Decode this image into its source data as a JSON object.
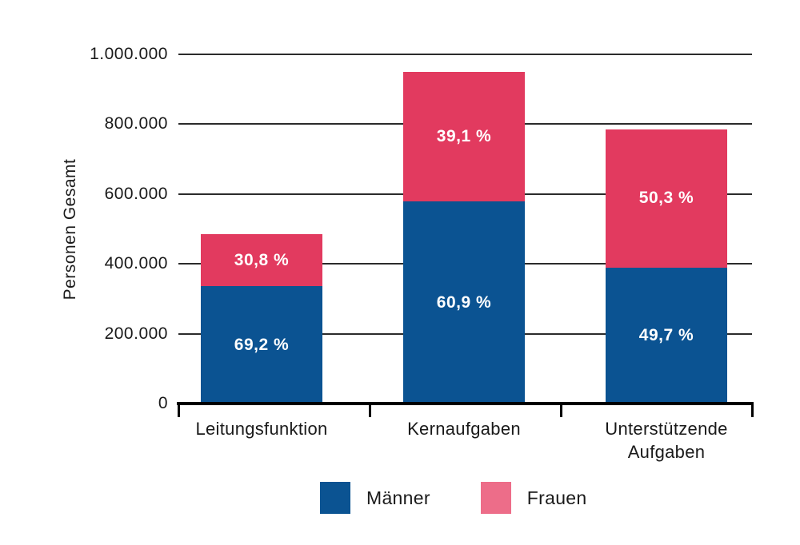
{
  "chart_data": {
    "type": "bar",
    "variant": "stacked",
    "title": "",
    "ylabel": "Personen Gesamt",
    "xlabel": "",
    "categories": [
      "Leitungsfunktion",
      "Kernaufgaben",
      "Unterstützende Aufgaben"
    ],
    "totals": [
      485000,
      950000,
      785000
    ],
    "series": [
      {
        "name": "Männer",
        "color": "#0b5392",
        "legend_color": "#0b5392",
        "percents": [
          69.2,
          60.9,
          49.7
        ],
        "percent_labels": [
          "69,2 %",
          "60,9 %",
          "49,7 %"
        ],
        "values_approx": [
          335600,
          578600,
          390100
        ]
      },
      {
        "name": "Frauen",
        "color": "#e23a5f",
        "legend_color": "#ed6d89",
        "percents": [
          30.8,
          39.1,
          50.3
        ],
        "percent_labels": [
          "30,8 %",
          "39,1 %",
          "50,3 %"
        ],
        "values_approx": [
          149400,
          371400,
          394900
        ]
      }
    ],
    "ylim": [
      0,
      1000000
    ],
    "yticks": [
      0,
      200000,
      400000,
      600000,
      800000,
      1000000
    ],
    "ytick_labels": [
      "0",
      "200.000",
      "400.000",
      "600.000",
      "800.000",
      "1.000.000"
    ],
    "grid": true,
    "grid_color": "#2b2b2b",
    "axis_color": "#000000",
    "label_text_color": "#ffffff",
    "legend_position": "bottom"
  }
}
